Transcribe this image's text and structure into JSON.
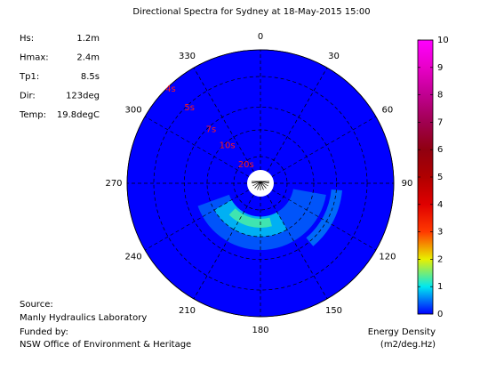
{
  "chart_data": {
    "type": "polar-spectrum",
    "title": "Directional Spectra for Sydney at 18-May-2015 15:00",
    "stats": [
      {
        "label": "Hs:",
        "value": "1.2m"
      },
      {
        "label": "Hmax:",
        "value": "2.4m"
      },
      {
        "label": "Tp1:",
        "value": "8.5s"
      },
      {
        "label": "Dir:",
        "value": "123deg"
      },
      {
        "label": "Temp:",
        "value": "19.8degC"
      }
    ],
    "source_label": "Source:",
    "source": "Manly Hydraulics Laboratory",
    "funded_label": "Funded by:",
    "funded": "NSW Office of Environment & Heritage",
    "colorbar_title": "Energy Density",
    "colorbar_units": "(m2/deg.Hz)",
    "direction_ticks": [
      0,
      30,
      60,
      90,
      120,
      150,
      180,
      210,
      240,
      270,
      300,
      330
    ],
    "period_ticks": [
      {
        "value": 4,
        "label": "4s"
      },
      {
        "value": 5,
        "label": "5s"
      },
      {
        "value": 7,
        "label": "7s"
      },
      {
        "value": 10,
        "label": "10s"
      },
      {
        "value": 20,
        "label": "20s"
      }
    ],
    "clim": [
      0,
      10
    ],
    "cticks": [
      0,
      1,
      2,
      3,
      4,
      5,
      6,
      7,
      8,
      9,
      10
    ],
    "colormap": [
      "#0000ff",
      "#00e8f0",
      "#e8f000",
      "#ff3a00",
      "#e00000",
      "#b00000",
      "#900010",
      "#a00050",
      "#c00090",
      "#e800c8",
      "#ff00ff"
    ],
    "spectrum": [
      {
        "direction": [
          100,
          250
        ],
        "period": [
          8,
          16
        ],
        "value": 0.4
      },
      {
        "direction": [
          95,
          140
        ],
        "period": [
          6.5,
          7.5
        ],
        "value": 0.5
      },
      {
        "direction": [
          150,
          240
        ],
        "period": [
          10,
          16
        ],
        "value": 0.8
      },
      {
        "direction": [
          165,
          225
        ],
        "period": [
          12,
          15
        ],
        "value": 1.3
      }
    ]
  }
}
